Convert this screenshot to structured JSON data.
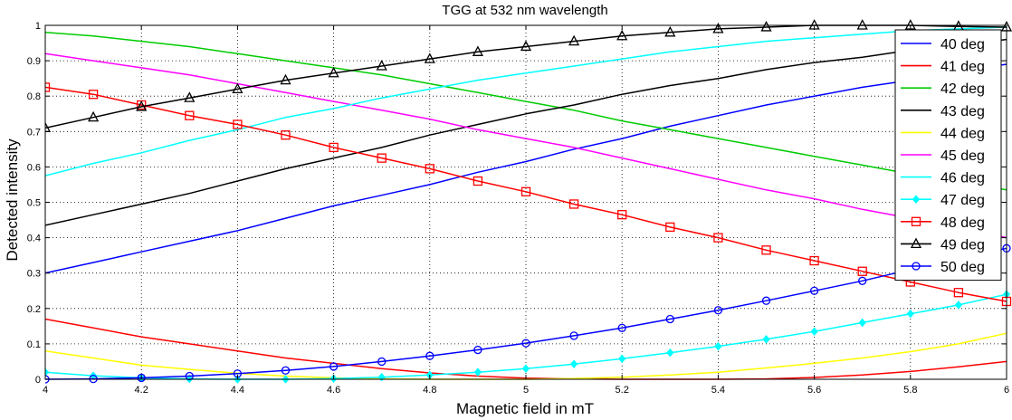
{
  "chart_data": {
    "type": "line",
    "title": "TGG at 532 nm wavelength",
    "xlabel": "Magnetic field in mT",
    "ylabel": "Detected intensity",
    "xlim": [
      4,
      6
    ],
    "ylim": [
      0,
      1
    ],
    "grid": true,
    "legend_position": "top-right",
    "x_ticks": [
      "4",
      "4.2",
      "4.4",
      "4.6",
      "4.8",
      "5",
      "5.2",
      "5.4",
      "5.6",
      "5.8",
      "6"
    ],
    "y_ticks": [
      "0",
      "0.1",
      "0.2",
      "0.3",
      "0.4",
      "0.5",
      "0.6",
      "0.7",
      "0.8",
      "0.9",
      "1"
    ],
    "x": [
      4.0,
      4.1,
      4.2,
      4.3,
      4.4,
      4.5,
      4.6,
      4.7,
      4.8,
      4.9,
      5.0,
      5.1,
      5.2,
      5.3,
      5.4,
      5.5,
      5.6,
      5.7,
      5.8,
      5.9,
      6.0
    ],
    "series": [
      {
        "name": "40 deg",
        "color": "#0000ff",
        "marker": "none",
        "values": [
          0.3,
          0.33,
          0.36,
          0.39,
          0.42,
          0.455,
          0.49,
          0.52,
          0.55,
          0.585,
          0.615,
          0.65,
          0.68,
          0.715,
          0.745,
          0.775,
          0.8,
          0.825,
          0.845,
          0.87,
          0.89
        ]
      },
      {
        "name": "41 deg",
        "color": "#ff0000",
        "marker": "none",
        "values": [
          0.17,
          0.145,
          0.12,
          0.1,
          0.08,
          0.06,
          0.045,
          0.03,
          0.018,
          0.009,
          0.003,
          0.001,
          0.0,
          0.0,
          0.0,
          0.001,
          0.005,
          0.012,
          0.022,
          0.035,
          0.05
        ]
      },
      {
        "name": "42 deg",
        "color": "#00cc00",
        "marker": "none",
        "values": [
          0.98,
          0.97,
          0.955,
          0.94,
          0.92,
          0.9,
          0.88,
          0.86,
          0.835,
          0.81,
          0.785,
          0.76,
          0.73,
          0.705,
          0.68,
          0.655,
          0.63,
          0.605,
          0.58,
          0.56,
          0.535
        ]
      },
      {
        "name": "43 deg",
        "color": "#000000",
        "marker": "none",
        "values": [
          0.435,
          0.465,
          0.495,
          0.525,
          0.56,
          0.595,
          0.625,
          0.655,
          0.69,
          0.72,
          0.75,
          0.775,
          0.805,
          0.83,
          0.85,
          0.875,
          0.895,
          0.91,
          0.93,
          0.945,
          0.96
        ]
      },
      {
        "name": "44 deg",
        "color": "#ffff00",
        "marker": "none",
        "values": [
          0.08,
          0.06,
          0.04,
          0.028,
          0.017,
          0.009,
          0.004,
          0.001,
          0.0,
          0.0,
          0.0,
          0.002,
          0.006,
          0.012,
          0.02,
          0.032,
          0.045,
          0.06,
          0.078,
          0.1,
          0.13
        ]
      },
      {
        "name": "45 deg",
        "color": "#ff00ff",
        "marker": "none",
        "values": [
          0.92,
          0.9,
          0.88,
          0.86,
          0.835,
          0.81,
          0.785,
          0.76,
          0.735,
          0.705,
          0.68,
          0.655,
          0.625,
          0.595,
          0.565,
          0.535,
          0.51,
          0.48,
          0.455,
          0.43,
          0.4
        ]
      },
      {
        "name": "46 deg",
        "color": "#00ffff",
        "marker": "none",
        "values": [
          0.575,
          0.61,
          0.64,
          0.675,
          0.705,
          0.74,
          0.765,
          0.795,
          0.82,
          0.845,
          0.865,
          0.885,
          0.905,
          0.925,
          0.94,
          0.955,
          0.965,
          0.975,
          0.985,
          0.99,
          0.995
        ]
      },
      {
        "name": "47 deg",
        "color": "#00ffff",
        "marker": "diamond",
        "values": [
          0.02,
          0.01,
          0.004,
          0.001,
          0.0,
          0.0,
          0.002,
          0.006,
          0.012,
          0.02,
          0.03,
          0.043,
          0.058,
          0.075,
          0.093,
          0.113,
          0.135,
          0.16,
          0.185,
          0.21,
          0.24
        ]
      },
      {
        "name": "48 deg",
        "color": "#ff0000",
        "marker": "square",
        "values": [
          0.825,
          0.805,
          0.775,
          0.745,
          0.72,
          0.69,
          0.655,
          0.625,
          0.595,
          0.56,
          0.53,
          0.495,
          0.465,
          0.43,
          0.4,
          0.365,
          0.335,
          0.305,
          0.275,
          0.245,
          0.22
        ]
      },
      {
        "name": "49 deg",
        "color": "#000000",
        "marker": "triangle",
        "values": [
          0.71,
          0.74,
          0.77,
          0.795,
          0.82,
          0.845,
          0.865,
          0.885,
          0.905,
          0.925,
          0.94,
          0.955,
          0.97,
          0.98,
          0.99,
          0.995,
          1.0,
          1.0,
          1.0,
          0.997,
          0.995
        ]
      },
      {
        "name": "50 deg",
        "color": "#0000ff",
        "marker": "circle",
        "values": [
          0.0,
          0.001,
          0.004,
          0.009,
          0.016,
          0.025,
          0.036,
          0.05,
          0.066,
          0.083,
          0.102,
          0.123,
          0.145,
          0.17,
          0.195,
          0.222,
          0.25,
          0.278,
          0.31,
          0.34,
          0.37
        ]
      }
    ]
  }
}
